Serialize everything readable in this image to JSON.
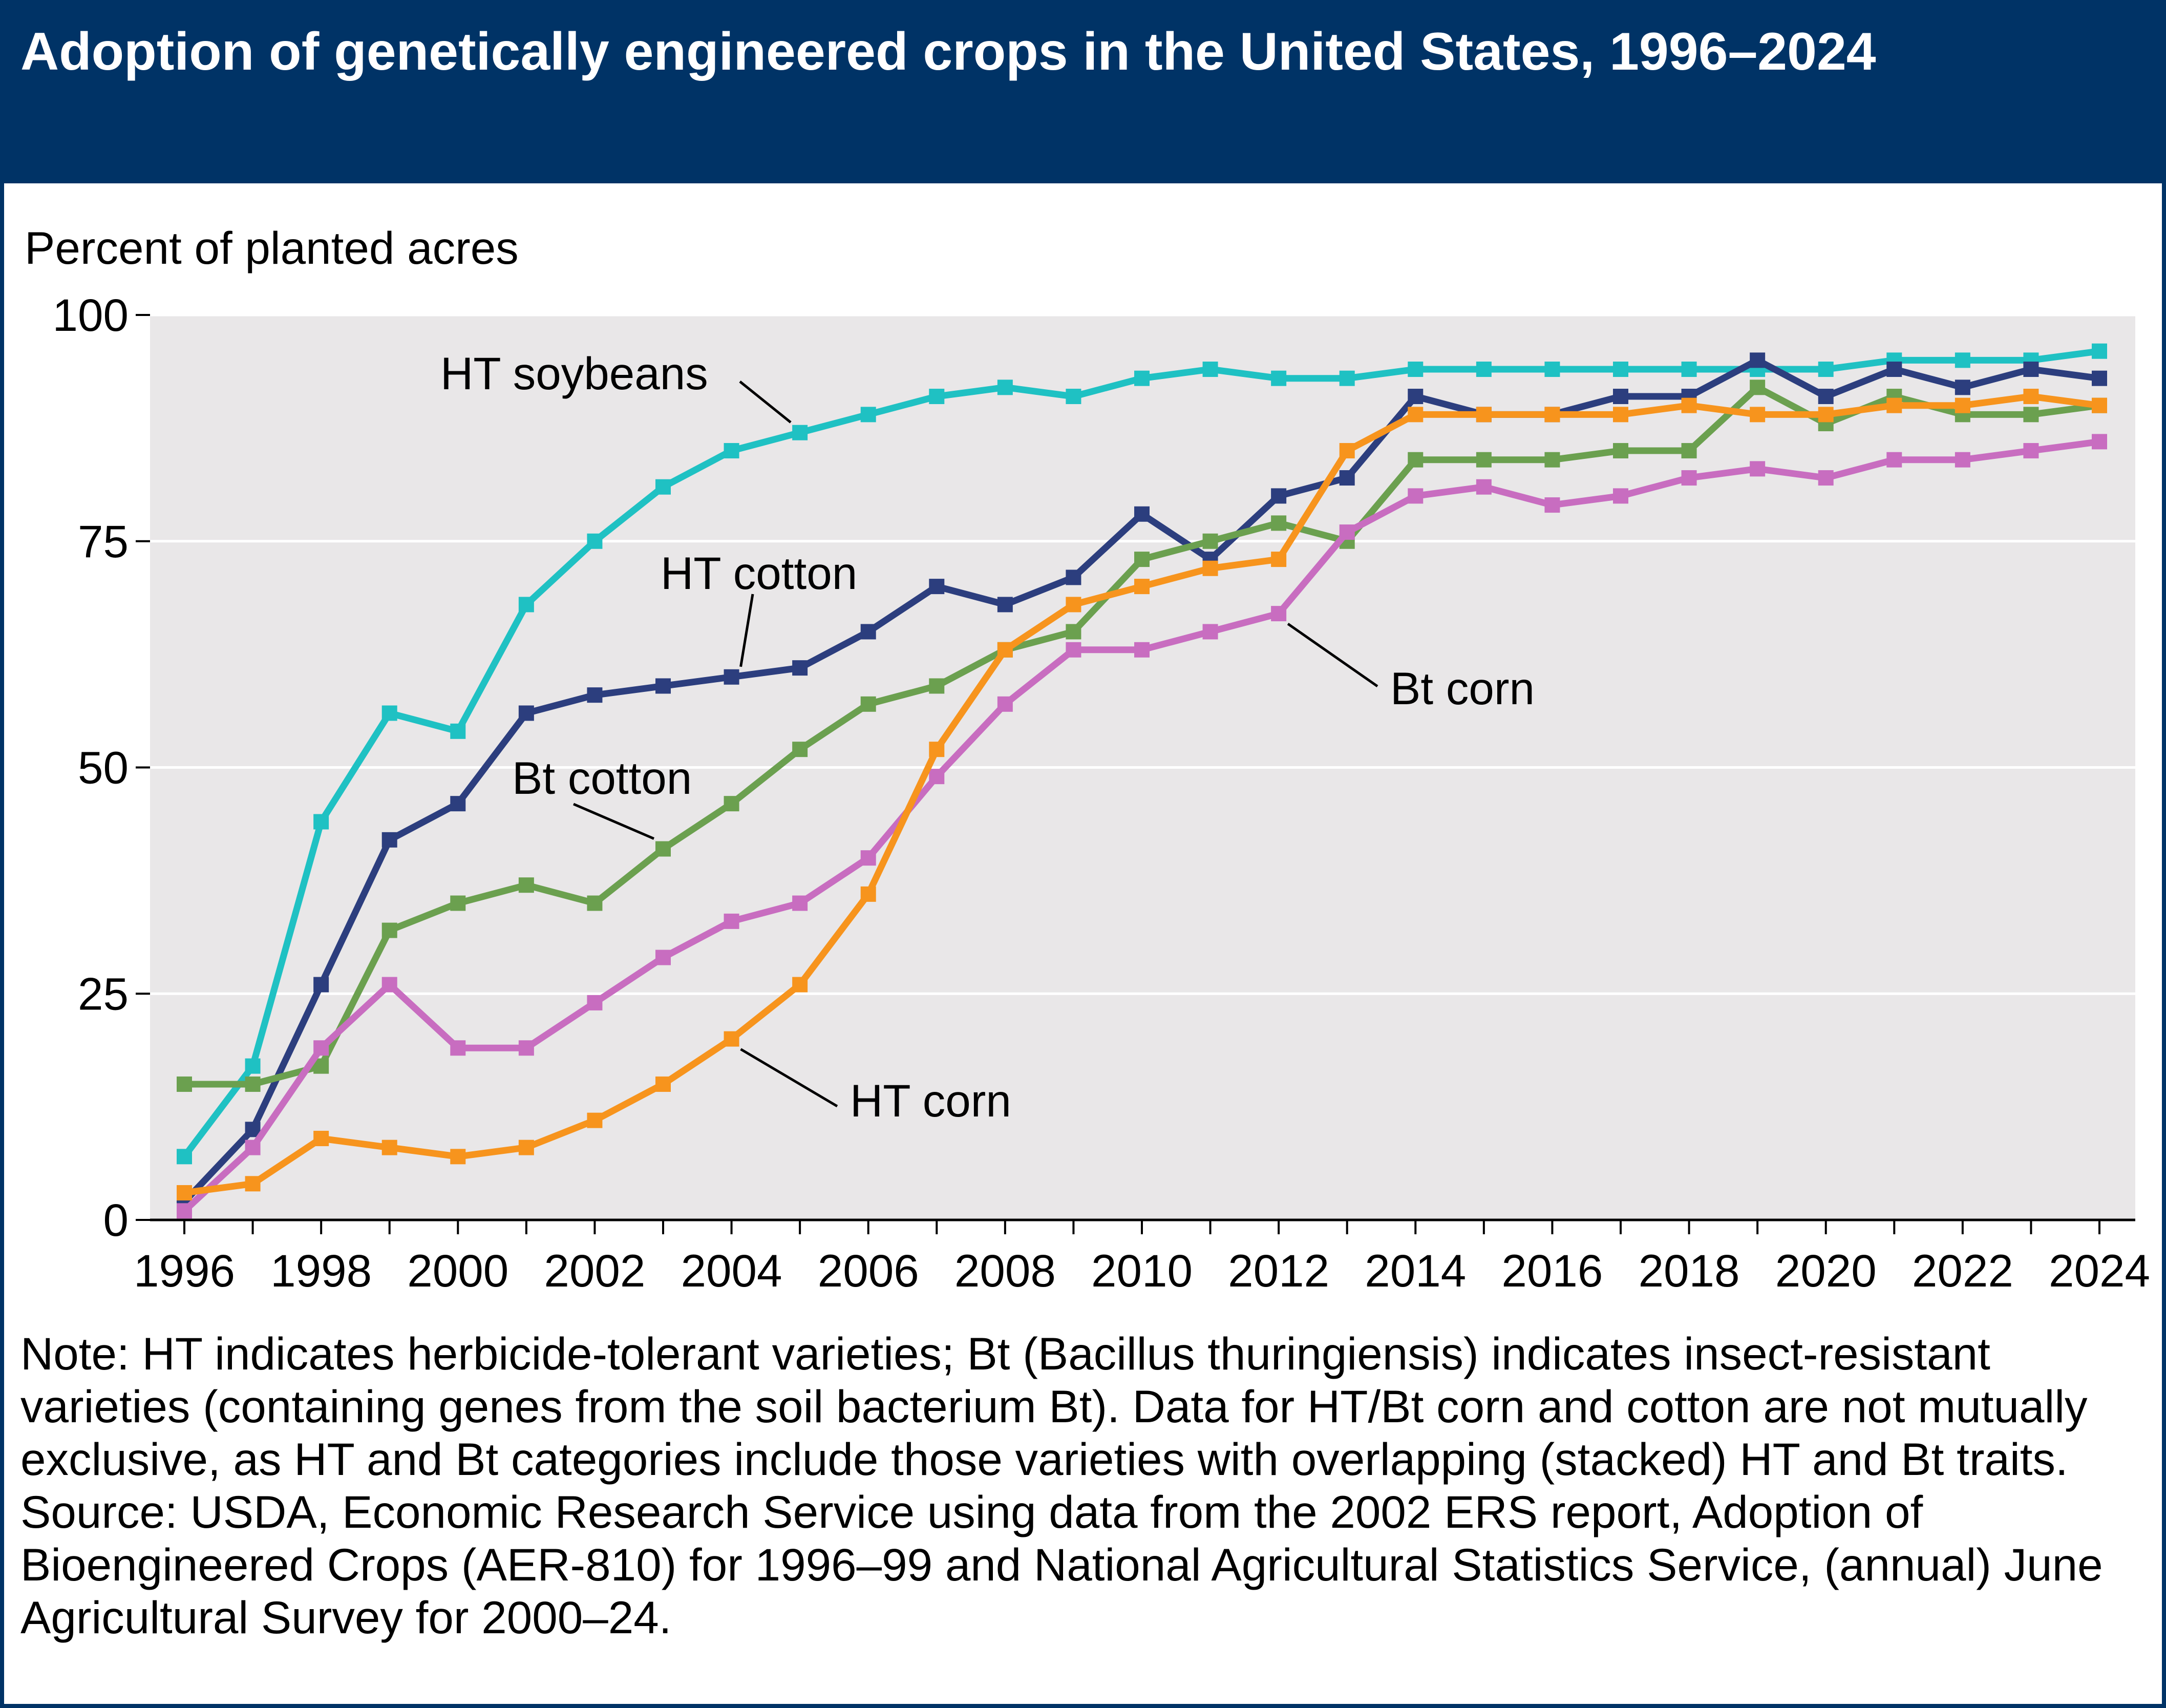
{
  "header": {
    "title": "Adoption of genetically engineered crops in the United States, 1996–2024"
  },
  "chart_data": {
    "type": "line",
    "title": "Adoption of genetically engineered crops in the United States, 1996–2024",
    "xlabel": "",
    "ylabel": "Percent of planted acres",
    "xlim": [
      1996,
      2024
    ],
    "ylim": [
      0,
      100
    ],
    "grid": true,
    "x": [
      1996,
      1997,
      1998,
      1999,
      2000,
      2001,
      2002,
      2003,
      2004,
      2005,
      2006,
      2007,
      2008,
      2009,
      2010,
      2011,
      2012,
      2013,
      2014,
      2015,
      2016,
      2017,
      2018,
      2019,
      2020,
      2021,
      2022,
      2023,
      2024
    ],
    "x_tick_labels": [
      "1996",
      "1998",
      "2000",
      "2002",
      "2004",
      "2006",
      "2008",
      "2010",
      "2012",
      "2014",
      "2016",
      "2018",
      "2020",
      "2022",
      "2024"
    ],
    "y_tick_labels": [
      "0",
      "25",
      "50",
      "75",
      "100"
    ],
    "series": [
      {
        "name": "HT soybeans",
        "label": "HT soybeans",
        "color": "#1fc1c3",
        "values": [
          7,
          17,
          44,
          56,
          54,
          68,
          75,
          81,
          85,
          87,
          89,
          91,
          92,
          91,
          93,
          94,
          93,
          93,
          94,
          94,
          94,
          94,
          94,
          94,
          94,
          95,
          95,
          95,
          96
        ]
      },
      {
        "name": "HT cotton",
        "label": "HT cotton",
        "color": "#2c3e7e",
        "values": [
          2,
          10,
          26,
          42,
          46,
          56,
          58,
          59,
          60,
          61,
          65,
          70,
          68,
          71,
          78,
          73,
          80,
          82,
          91,
          89,
          89,
          91,
          91,
          95,
          91,
          94,
          92,
          94,
          93
        ]
      },
      {
        "name": "Bt cotton",
        "label": "Bt cotton",
        "color": "#6ba04f",
        "values": [
          15,
          15,
          17,
          32,
          35,
          37,
          35,
          41,
          46,
          52,
          57,
          59,
          63,
          65,
          73,
          75,
          77,
          75,
          84,
          84,
          84,
          85,
          85,
          92,
          88,
          91,
          89,
          89,
          90
        ]
      },
      {
        "name": "Bt corn",
        "label": "Bt corn",
        "color": "#c86dc0",
        "values": [
          1,
          8,
          19,
          26,
          19,
          19,
          24,
          29,
          33,
          35,
          40,
          49,
          57,
          63,
          63,
          65,
          67,
          76,
          80,
          81,
          79,
          80,
          82,
          83,
          82,
          84,
          84,
          85,
          86
        ]
      },
      {
        "name": "HT corn",
        "label": "HT corn",
        "color": "#f7941d",
        "values": [
          3,
          4,
          9,
          8,
          7,
          8,
          11,
          15,
          20,
          26,
          36,
          52,
          63,
          68,
          70,
          72,
          73,
          85,
          89,
          89,
          89,
          89,
          90,
          89,
          89,
          90,
          90,
          91,
          90
        ]
      }
    ]
  },
  "notes": {
    "note": "Note: HT indicates herbicide-tolerant varieties; Bt (Bacillus thuringiensis) indicates insect-resistant varieties (containing genes from the soil bacterium Bt). Data for HT/Bt corn and cotton are not mutually exclusive, as HT and Bt categories include those varieties with overlapping (stacked) HT and Bt traits.",
    "source": "Source: USDA, Economic Research Service using data from the 2002 ERS report, Adoption of Bioengineered Crops (AER-810) for 1996–99 and National Agricultural Statistics Service, (annual) June Agricultural Survey for 2000–24."
  }
}
